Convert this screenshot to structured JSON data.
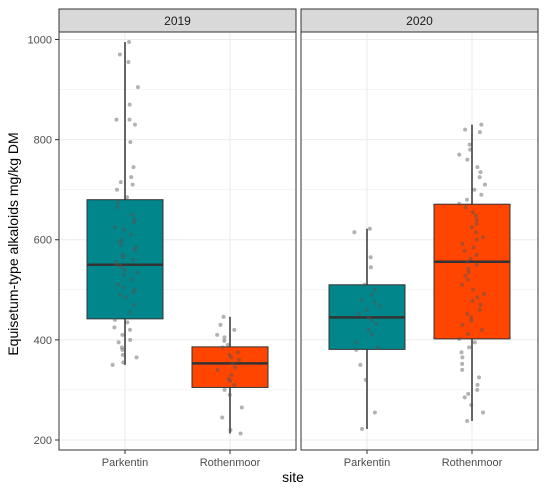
{
  "chart_data": {
    "type": "boxplot",
    "xlabel": "site",
    "ylabel": "Equisetum-type alkaloids mg/kg DM",
    "ylim": [
      180,
      1015
    ],
    "yticks": [
      200,
      400,
      600,
      800,
      1000
    ],
    "grid": true,
    "colors": {
      "Parkentin": "#00868b",
      "Rothenmoor": "#ff4500",
      "panel_strip": "#d9d9d9",
      "grid": "#ebebeb",
      "frame": "#333333"
    },
    "panels": [
      {
        "label": "2019",
        "boxes": [
          {
            "site": "Parkentin",
            "min": 350,
            "q1": 442,
            "median": 550,
            "q3": 680,
            "max": 995,
            "points": [
              995,
              970,
              955,
              905,
              870,
              840,
              840,
              830,
              795,
              745,
              725,
              715,
              710,
              700,
              685,
              675,
              665,
              650,
              640,
              635,
              625,
              620,
              610,
              600,
              595,
              590,
              585,
              580,
              570,
              565,
              560,
              555,
              550,
              548,
              545,
              540,
              535,
              530,
              520,
              510,
              505,
              500,
              495,
              490,
              485,
              470,
              455,
              440,
              435,
              425,
              420,
              410,
              400,
              395,
              385,
              380,
              370,
              365,
              355,
              350
            ]
          },
          {
            "site": "Rothenmoor",
            "min": 213,
            "q1": 305,
            "median": 353,
            "q3": 386,
            "max": 446,
            "points": [
              446,
              430,
              420,
              410,
              405,
              398,
              390,
              385,
              375,
              370,
              365,
              360,
              353,
              345,
              340,
              330,
              322,
              318,
              310,
              300,
              290,
              265,
              245,
              220,
              213
            ]
          }
        ]
      },
      {
        "label": "2020",
        "boxes": [
          {
            "site": "Parkentin",
            "min": 222,
            "q1": 381,
            "median": 445,
            "q3": 510,
            "max": 622,
            "points": [
              622,
              615,
              565,
              545,
              510,
              500,
              490,
              480,
              475,
              468,
              460,
              452,
              445,
              440,
              432,
              420,
              410,
              395,
              385,
              380,
              350,
              320,
              255,
              222
            ]
          },
          {
            "site": "Rothenmoor",
            "min": 238,
            "q1": 402,
            "median": 556,
            "q3": 671,
            "max": 830,
            "points": [
              830,
              820,
              815,
              790,
              780,
              770,
              760,
              745,
              735,
              725,
              710,
              700,
              690,
              680,
              672,
              665,
              655,
              648,
              640,
              632,
              625,
              615,
              605,
              600,
              592,
              585,
              578,
              570,
              562,
              556,
              550,
              542,
              535,
              528,
              520,
              510,
              500,
              492,
              485,
              478,
              470,
              460,
              452,
              445,
              438,
              430,
              420,
              412,
              402,
              395,
              385,
              375,
              365,
              352,
              340,
              325,
              310,
              300,
              292,
              285,
              270,
              255,
              238
            ]
          }
        ]
      }
    ]
  }
}
